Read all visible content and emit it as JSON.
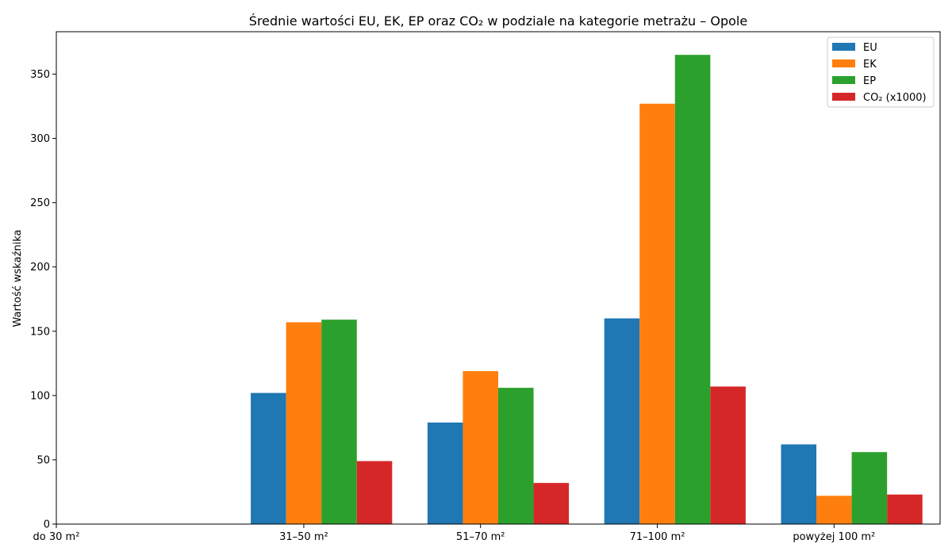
{
  "chart_data": {
    "type": "bar",
    "title": "Średnie wartości EU, EK, EP oraz CO₂ w podziale na kategorie metrażu – Opole",
    "xlabel": "",
    "ylabel": "Wartość wskaźnika",
    "categories": [
      "do 30 m²",
      "31–50 m²",
      "51–70 m²",
      "71–100 m²",
      "powyżej 100 m²"
    ],
    "series": [
      {
        "name": "EU",
        "color": "#1f77b4",
        "values": [
          0,
          102,
          79,
          160,
          62
        ]
      },
      {
        "name": "EK",
        "color": "#ff7f0e",
        "values": [
          0,
          157,
          119,
          327,
          22
        ]
      },
      {
        "name": "EP",
        "color": "#2ca02c",
        "values": [
          0,
          159,
          106,
          365,
          56
        ]
      },
      {
        "name": "CO₂ (x1000)",
        "color": "#d62728",
        "values": [
          0,
          49,
          32,
          107,
          23
        ]
      }
    ],
    "ylim": [
      0,
      383
    ],
    "yticks": [
      0,
      50,
      100,
      150,
      200,
      250,
      300,
      350
    ],
    "grid": false,
    "legend_position": "top-right"
  }
}
